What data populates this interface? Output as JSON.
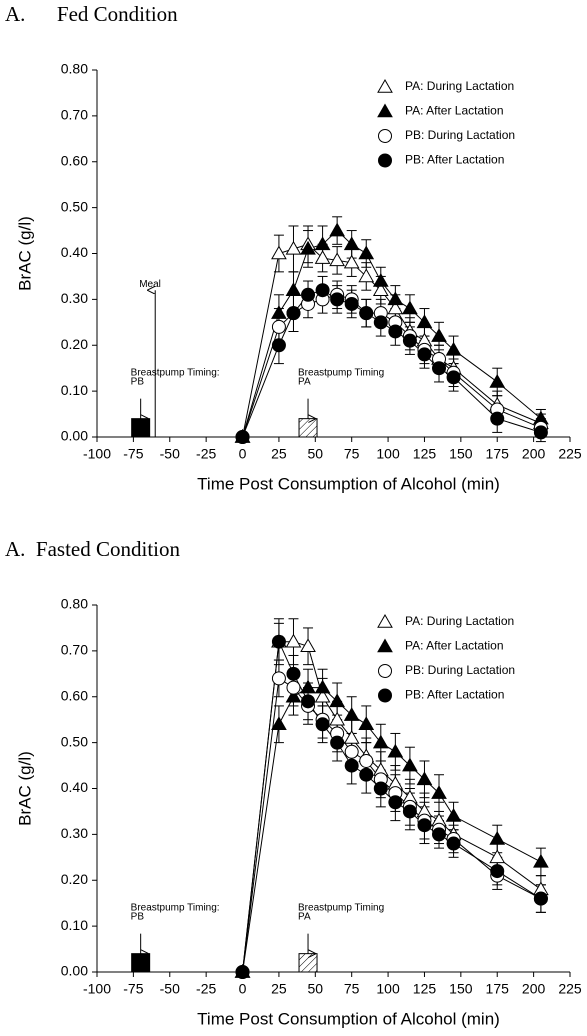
{
  "chart_data": [
    {
      "type": "line",
      "title": "A.      Fed Condition",
      "xlabel": "Time Post Consumption of Alcohol (min)",
      "ylabel": "BrAC (g/l)",
      "x": [
        0,
        25,
        35,
        45,
        55,
        65,
        75,
        85,
        95,
        105,
        115,
        125,
        135,
        145,
        175,
        205
      ],
      "xlim": [
        -100,
        225
      ],
      "xticks": [
        -100,
        -75,
        -50,
        -25,
        0,
        25,
        50,
        75,
        100,
        125,
        150,
        175,
        200,
        225
      ],
      "ylim": [
        0,
        0.8
      ],
      "yticks": [
        {
          "value": 0,
          "label": "0.00"
        },
        {
          "value": 0.1,
          "label": "0.10"
        },
        {
          "value": 0.2,
          "label": "0.20"
        },
        {
          "value": 0.3,
          "label": "0.30"
        },
        {
          "value": 0.4,
          "label": "0.40"
        },
        {
          "value": 0.5,
          "label": "0.50"
        },
        {
          "value": 0.6,
          "label": "0.60"
        },
        {
          "value": 0.7,
          "label": "0.70"
        },
        {
          "value": 0.8,
          "label": "0.80"
        }
      ],
      "legend": "upper right",
      "series": [
        {
          "name": "PA: During Lactation",
          "marker": "triangle",
          "fill": "#ffffff",
          "color": "#000000",
          "values": [
            0,
            0.4,
            0.41,
            0.42,
            0.39,
            0.385,
            0.38,
            0.35,
            0.32,
            0.28,
            0.23,
            0.21,
            0.17,
            0.15,
            0.07,
            0.03
          ],
          "errors": [
            0,
            0.04,
            0.05,
            0.04,
            0.03,
            0.03,
            0.03,
            0.03,
            0.03,
            0.03,
            0.03,
            0.03,
            0.03,
            0.03,
            0.03,
            0.02
          ]
        },
        {
          "name": "PA: After Lactation",
          "marker": "triangle",
          "fill": "#000000",
          "color": "#000000",
          "values": [
            0,
            0.27,
            0.32,
            0.41,
            0.42,
            0.45,
            0.42,
            0.4,
            0.34,
            0.3,
            0.28,
            0.25,
            0.22,
            0.19,
            0.12,
            0.04
          ],
          "errors": [
            0,
            0.04,
            0.04,
            0.04,
            0.04,
            0.03,
            0.03,
            0.03,
            0.03,
            0.03,
            0.03,
            0.03,
            0.03,
            0.03,
            0.03,
            0.02
          ]
        },
        {
          "name": "PB: During Lactation",
          "marker": "circle",
          "fill": "#ffffff",
          "color": "#000000",
          "values": [
            0,
            0.24,
            0.27,
            0.29,
            0.3,
            0.31,
            0.3,
            0.27,
            0.27,
            0.25,
            0.22,
            0.19,
            0.17,
            0.14,
            0.06,
            0.02
          ],
          "errors": [
            0,
            0.04,
            0.04,
            0.03,
            0.03,
            0.03,
            0.03,
            0.03,
            0.03,
            0.03,
            0.03,
            0.03,
            0.03,
            0.03,
            0.03,
            0.02
          ]
        },
        {
          "name": "PB: After Lactation",
          "marker": "circle",
          "fill": "#000000",
          "color": "#000000",
          "values": [
            0,
            0.2,
            0.27,
            0.31,
            0.32,
            0.3,
            0.29,
            0.27,
            0.25,
            0.23,
            0.21,
            0.18,
            0.15,
            0.13,
            0.04,
            0.01
          ],
          "errors": [
            0,
            0.04,
            0.04,
            0.03,
            0.03,
            0.03,
            0.03,
            0.03,
            0.03,
            0.03,
            0.03,
            0.03,
            0.03,
            0.03,
            0.03,
            0.02
          ]
        }
      ],
      "pumps": [
        {
          "lines": [
            "Breastpump Timing:",
            "PB"
          ],
          "x": -70,
          "value": 0.04,
          "style": "solid"
        },
        {
          "lines": [
            "Breastpump Timing",
            "PA"
          ],
          "x": 45,
          "value": 0.04,
          "style": "hatched"
        }
      ],
      "meal": {
        "text": "Meal",
        "x": -60,
        "y": 0.32
      }
    },
    {
      "type": "line",
      "title": "A.  Fasted Condition",
      "xlabel": "Time Post Consumption of Alcohol (min)",
      "ylabel": "BrAC (g/l)",
      "x": [
        0,
        25,
        35,
        45,
        55,
        65,
        75,
        85,
        95,
        105,
        115,
        125,
        135,
        145,
        175,
        205
      ],
      "xlim": [
        -100,
        225
      ],
      "xticks": [
        -100,
        -75,
        -50,
        -25,
        0,
        25,
        50,
        75,
        100,
        125,
        150,
        175,
        200,
        225
      ],
      "ylim": [
        0,
        0.8
      ],
      "yticks": [
        {
          "value": 0,
          "label": "0.00"
        },
        {
          "value": 0.1,
          "label": "0.10"
        },
        {
          "value": 0.2,
          "label": "0.20"
        },
        {
          "value": 0.3,
          "label": "0.30"
        },
        {
          "value": 0.4,
          "label": "0.40"
        },
        {
          "value": 0.5,
          "label": "0.50"
        },
        {
          "value": 0.6,
          "label": "0.60"
        },
        {
          "value": 0.7,
          "label": "0.70"
        },
        {
          "value": 0.8,
          "label": "0.80"
        }
      ],
      "legend": "upper right",
      "series": [
        {
          "name": "PA: During Lactation",
          "marker": "triangle",
          "fill": "#ffffff",
          "color": "#000000",
          "values": [
            0,
            0.72,
            0.72,
            0.71,
            0.6,
            0.55,
            0.51,
            0.47,
            0.44,
            0.41,
            0.38,
            0.35,
            0.33,
            0.3,
            0.25,
            0.18
          ],
          "errors": [
            0,
            0.05,
            0.05,
            0.04,
            0.04,
            0.04,
            0.04,
            0.04,
            0.04,
            0.04,
            0.04,
            0.04,
            0.04,
            0.03,
            0.03,
            0.03
          ]
        },
        {
          "name": "PA: After Lactation",
          "marker": "triangle",
          "fill": "#000000",
          "color": "#000000",
          "values": [
            0,
            0.54,
            0.6,
            0.62,
            0.62,
            0.59,
            0.56,
            0.54,
            0.5,
            0.48,
            0.45,
            0.42,
            0.39,
            0.34,
            0.29,
            0.24
          ],
          "errors": [
            0,
            0.04,
            0.04,
            0.04,
            0.04,
            0.04,
            0.04,
            0.04,
            0.04,
            0.04,
            0.04,
            0.04,
            0.04,
            0.03,
            0.03,
            0.03
          ]
        },
        {
          "name": "PB: During Lactation",
          "marker": "circle",
          "fill": "#ffffff",
          "color": "#000000",
          "values": [
            0,
            0.64,
            0.62,
            0.58,
            0.55,
            0.52,
            0.48,
            0.46,
            0.42,
            0.39,
            0.36,
            0.33,
            0.31,
            0.29,
            0.21,
            0.16
          ],
          "errors": [
            0,
            0.04,
            0.04,
            0.04,
            0.04,
            0.04,
            0.04,
            0.04,
            0.04,
            0.04,
            0.04,
            0.04,
            0.03,
            0.03,
            0.03,
            0.03
          ]
        },
        {
          "name": "PB: After Lactation",
          "marker": "circle",
          "fill": "#000000",
          "color": "#000000",
          "values": [
            0,
            0.72,
            0.65,
            0.59,
            0.54,
            0.5,
            0.45,
            0.43,
            0.4,
            0.37,
            0.35,
            0.32,
            0.3,
            0.28,
            0.22,
            0.16
          ],
          "errors": [
            0,
            0.04,
            0.04,
            0.04,
            0.04,
            0.04,
            0.04,
            0.04,
            0.04,
            0.04,
            0.04,
            0.04,
            0.03,
            0.03,
            0.03,
            0.03
          ]
        }
      ],
      "pumps": [
        {
          "lines": [
            "Breastpump Timing:",
            "PB"
          ],
          "x": -70,
          "value": 0.04,
          "style": "solid"
        },
        {
          "lines": [
            "Breastpump Timing",
            "PA"
          ],
          "x": 45,
          "value": 0.04,
          "style": "hatched"
        }
      ]
    }
  ]
}
